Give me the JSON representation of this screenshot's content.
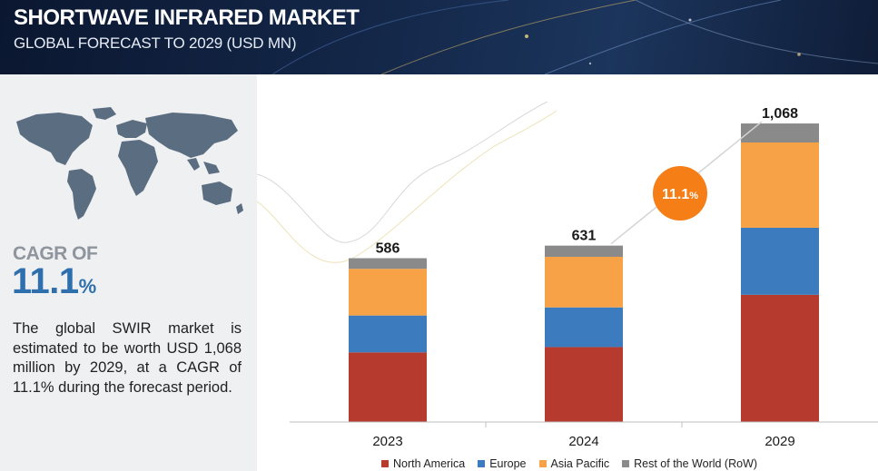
{
  "header": {
    "title": "SHORTWAVE INFRARED MARKET",
    "subtitle": "GLOBAL FORECAST TO 2029 (USD MN)"
  },
  "summary": {
    "cagr_label": "CAGR OF",
    "cagr_value": "11.1",
    "cagr_unit": "%",
    "description": "The global SWIR market is estimated to be worth USD 1,068 million by 2029, at a CAGR of 11.1% during the forecast period."
  },
  "colors": {
    "north_america": "#b73a2e",
    "europe": "#3c7bbd",
    "asia_pacific": "#f7a247",
    "rest_of_world": "#8a8a8a",
    "cagr_badge": "#f57e16",
    "cagr_text": "#2e6fad"
  },
  "chart_data": {
    "type": "bar",
    "stacked": true,
    "categories": [
      "2023",
      "2024",
      "2029"
    ],
    "totals": [
      586,
      631,
      1068
    ],
    "total_labels": [
      "586",
      "631",
      "1,068"
    ],
    "series": [
      {
        "name": "North America",
        "values": [
          249,
          268,
          455
        ],
        "color": "#b73a2e"
      },
      {
        "name": "Europe",
        "values": [
          132,
          142,
          240
        ],
        "color": "#3c7bbd"
      },
      {
        "name": "Asia Pacific",
        "values": [
          167,
          181,
          305
        ],
        "color": "#f7a247"
      },
      {
        "name": "Rest of the World (RoW)",
        "values": [
          38,
          40,
          68
        ],
        "color": "#8a8a8a"
      }
    ],
    "annotation": {
      "label": "11.1",
      "unit": "%"
    },
    "ylim": [
      0,
      1200
    ],
    "grid": false,
    "legend_position": "bottom"
  }
}
